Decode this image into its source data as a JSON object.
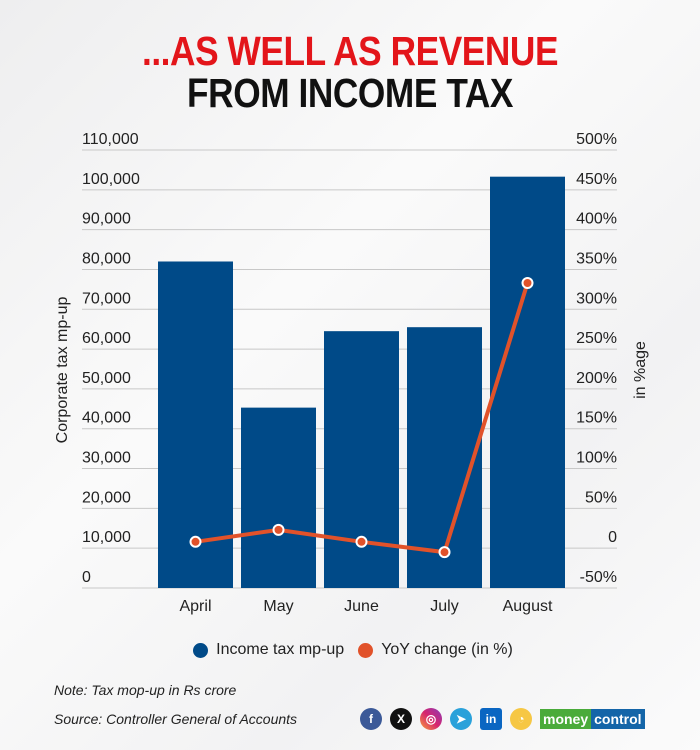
{
  "title_line1": "...AS WELL AS REVENUE",
  "title_line2": "FROM INCOME TAX",
  "chart_data": {
    "type": "bar+line",
    "categories": [
      "April",
      "May",
      "June",
      "July",
      "August"
    ],
    "series": [
      {
        "name": "Income tax mp-up",
        "type": "bar",
        "axis": "left",
        "color": "#004a88",
        "values": [
          82000,
          45300,
          64500,
          65500,
          103300
        ]
      },
      {
        "name": "YoY change (in %)",
        "type": "line",
        "axis": "right",
        "color": "#e1522a",
        "values": [
          8,
          23,
          8,
          -5,
          333
        ]
      }
    ],
    "ylabel_left": "Corporate tax mp-up",
    "ylabel_right": "in %age",
    "ylim_left": [
      0,
      110000
    ],
    "ylim_right": [
      -50,
      500
    ],
    "left_ticks": [
      "0",
      "10,000",
      "20,000",
      "30,000",
      "40,000",
      "50,000",
      "60,000",
      "70,000",
      "80,000",
      "90,000",
      "100,000",
      "110,000"
    ],
    "right_ticks": [
      "-50%",
      "0",
      "50%",
      "100%",
      "150%",
      "200%",
      "250%",
      "300%",
      "350%",
      "400%",
      "450%",
      "500%"
    ],
    "grid": true,
    "legend": "bottom"
  },
  "note": "Note: Tax mop-up in Rs crore",
  "source": "Source: Controller General of Accounts",
  "brand": {
    "part1": "money",
    "part2": "control"
  },
  "social_icons": [
    "facebook-icon",
    "x-icon",
    "instagram-icon",
    "telegram-icon",
    "linkedin-icon",
    "koo-icon"
  ]
}
